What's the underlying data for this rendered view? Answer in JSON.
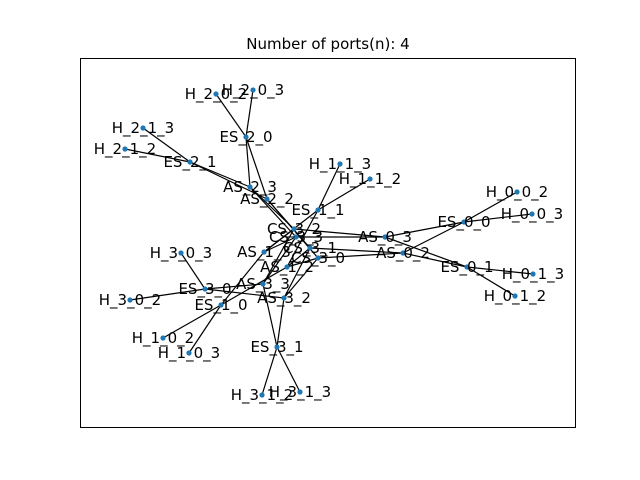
{
  "title": "Number of ports(n): 4",
  "colors": {
    "node": "#1f77b4",
    "edge": "#000000",
    "background": "#ffffff"
  },
  "nodes": [
    {
      "id": "H_2_0_2"
    },
    {
      "id": "H_2_0_3"
    },
    {
      "id": "ES_2_0"
    },
    {
      "id": "H_2_1_3"
    },
    {
      "id": "H_2_1_2"
    },
    {
      "id": "ES_2_1"
    },
    {
      "id": "AS_2_3"
    },
    {
      "id": "AS_2_2"
    },
    {
      "id": "H_1_1_3"
    },
    {
      "id": "H_1_1_2"
    },
    {
      "id": "ES_1_1"
    },
    {
      "id": "CS_3_2"
    },
    {
      "id": "CS_3_3"
    },
    {
      "id": "CS_3_1"
    },
    {
      "id": "CS_3_0"
    },
    {
      "id": "AS_0_3"
    },
    {
      "id": "AS_0_2"
    },
    {
      "id": "H_0_0_2"
    },
    {
      "id": "H_0_0_3"
    },
    {
      "id": "ES_0_0"
    },
    {
      "id": "ES_0_1"
    },
    {
      "id": "H_0_1_3"
    },
    {
      "id": "H_0_1_2"
    },
    {
      "id": "H_3_0_3"
    },
    {
      "id": "H_3_0_2"
    },
    {
      "id": "ES_3_0"
    },
    {
      "id": "AS_1_3"
    },
    {
      "id": "AS_1_2"
    },
    {
      "id": "AS_3_3"
    },
    {
      "id": "AS_3_2"
    },
    {
      "id": "ES_1_0"
    },
    {
      "id": "H_1_0_2"
    },
    {
      "id": "H_1_0_3"
    },
    {
      "id": "ES_3_1"
    },
    {
      "id": "H_3_1_2"
    },
    {
      "id": "H_3_1_3"
    }
  ],
  "edges": [
    [
      "H_2_0_2",
      "ES_2_0"
    ],
    [
      "H_2_0_3",
      "ES_2_0"
    ],
    [
      "ES_2_0",
      "AS_2_3"
    ],
    [
      "ES_2_0",
      "AS_2_2"
    ],
    [
      "H_2_1_3",
      "ES_2_1"
    ],
    [
      "H_2_1_2",
      "ES_2_1"
    ],
    [
      "ES_2_1",
      "AS_2_3"
    ],
    [
      "ES_2_1",
      "AS_2_2"
    ],
    [
      "AS_2_3",
      "CS_3_2"
    ],
    [
      "AS_2_3",
      "CS_3_3"
    ],
    [
      "AS_2_2",
      "CS_3_1"
    ],
    [
      "AS_2_2",
      "CS_3_0"
    ],
    [
      "H_1_1_3",
      "ES_1_1"
    ],
    [
      "H_1_1_2",
      "ES_1_1"
    ],
    [
      "ES_1_1",
      "AS_1_3"
    ],
    [
      "ES_1_1",
      "AS_1_2"
    ],
    [
      "AS_0_3",
      "CS_3_2"
    ],
    [
      "AS_0_3",
      "CS_3_3"
    ],
    [
      "AS_0_2",
      "CS_3_1"
    ],
    [
      "AS_0_2",
      "CS_3_0"
    ],
    [
      "H_0_0_2",
      "ES_0_0"
    ],
    [
      "H_0_0_3",
      "ES_0_0"
    ],
    [
      "ES_0_0",
      "AS_0_3"
    ],
    [
      "ES_0_0",
      "AS_0_2"
    ],
    [
      "ES_0_1",
      "AS_0_3"
    ],
    [
      "ES_0_1",
      "AS_0_2"
    ],
    [
      "H_0_1_3",
      "ES_0_1"
    ],
    [
      "H_0_1_2",
      "ES_0_1"
    ],
    [
      "H_3_0_3",
      "ES_3_0"
    ],
    [
      "H_3_0_2",
      "ES_3_0"
    ],
    [
      "ES_3_0",
      "AS_3_3"
    ],
    [
      "ES_3_0",
      "AS_3_2"
    ],
    [
      "AS_1_3",
      "CS_3_2"
    ],
    [
      "AS_1_3",
      "CS_3_3"
    ],
    [
      "AS_1_2",
      "CS_3_1"
    ],
    [
      "AS_1_2",
      "CS_3_0"
    ],
    [
      "AS_3_3",
      "CS_3_2"
    ],
    [
      "AS_3_3",
      "CS_3_3"
    ],
    [
      "AS_3_2",
      "CS_3_1"
    ],
    [
      "AS_3_2",
      "CS_3_0"
    ],
    [
      "ES_1_0",
      "AS_1_3"
    ],
    [
      "ES_1_0",
      "AS_1_2"
    ],
    [
      "H_1_0_2",
      "ES_1_0"
    ],
    [
      "H_1_0_3",
      "ES_1_0"
    ],
    [
      "ES_3_1",
      "AS_3_3"
    ],
    [
      "ES_3_1",
      "AS_3_2"
    ],
    [
      "H_3_1_2",
      "ES_3_1"
    ],
    [
      "H_3_1_3",
      "ES_3_1"
    ]
  ]
}
